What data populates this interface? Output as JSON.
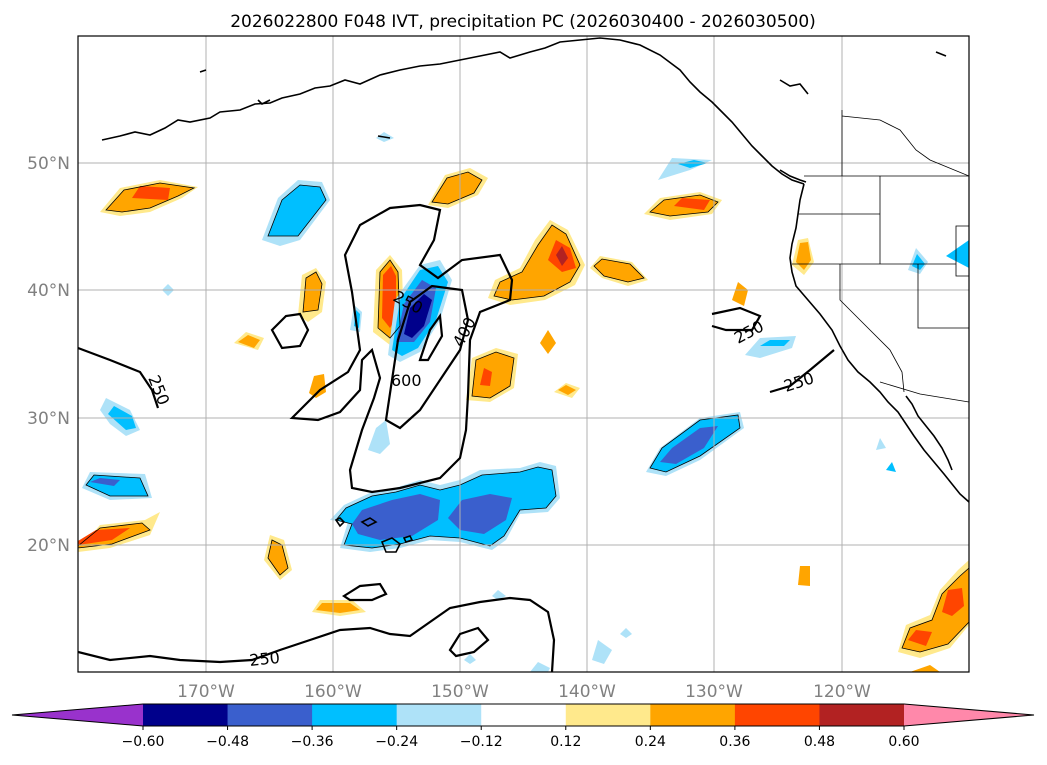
{
  "title": "2026022800 F048 IVT, precipitation PC (2026030400 - 2026030500)",
  "map": {
    "lat_labels": [
      "50°N",
      "40°N",
      "30°N",
      "20°N"
    ],
    "lon_labels": [
      "170°W",
      "160°W",
      "150°W",
      "140°W",
      "130°W",
      "120°W"
    ],
    "ivt_contour_labels": [
      "250",
      "400",
      "600",
      "250",
      "250",
      "250",
      "250"
    ]
  },
  "colorbar": {
    "tick_labels": [
      "−0.60",
      "−0.48",
      "−0.36",
      "−0.24",
      "−0.12",
      "0.12",
      "0.24",
      "0.36",
      "0.48",
      "0.60"
    ],
    "colors": [
      "#9932cc",
      "#00008b",
      "#3a5fcd",
      "#00bfff",
      "#aee2f8",
      "#ffffff",
      "#ffe98c",
      "#ffa500",
      "#ff4500",
      "#b22222",
      "#ff88aa"
    ]
  }
}
